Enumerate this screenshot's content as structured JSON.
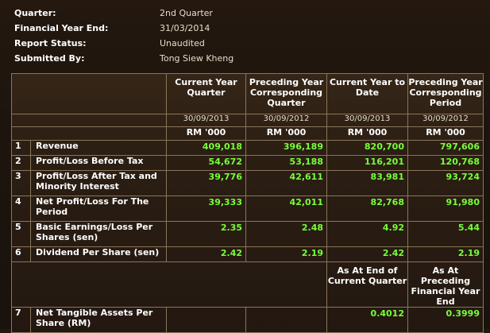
{
  "info": {
    "rows": [
      {
        "label": "Quarter:",
        "value": "2nd Quarter"
      },
      {
        "label": "Financial Year End:",
        "value": "31/03/2014"
      },
      {
        "label": "Report Status:",
        "value": "Unaudited"
      },
      {
        "label": "Submitted By:",
        "value": "Tong Siew Kheng"
      }
    ]
  },
  "table": {
    "headers": [
      "Current Year Quarter",
      "Preceding Year Corresponding Quarter",
      "Current Year to Date",
      "Preceding Year Corresponding Period"
    ],
    "dates": [
      "30/09/2013",
      "30/09/2012",
      "30/09/2013",
      "30/09/2012"
    ],
    "units": [
      "RM '000",
      "RM '000",
      "RM '000",
      "RM '000"
    ],
    "rows": [
      {
        "num": "1",
        "label": "Revenue",
        "values": [
          "409,018",
          "396,189",
          "820,700",
          "797,606"
        ]
      },
      {
        "num": "2",
        "label": "Profit/Loss Before Tax",
        "values": [
          "54,672",
          "53,188",
          "116,201",
          "120,768"
        ]
      },
      {
        "num": "3",
        "label": "Profit/Loss After Tax and Minority Interest",
        "values": [
          "39,776",
          "42,611",
          "83,981",
          "93,724"
        ]
      },
      {
        "num": "4",
        "label": "Net Profit/Loss For The Period",
        "values": [
          "39,333",
          "42,011",
          "82,768",
          "91,980"
        ]
      },
      {
        "num": "5",
        "label": "Basic Earnings/Loss Per Shares (sen)",
        "values": [
          "2.35",
          "2.48",
          "4.92",
          "5.44"
        ]
      },
      {
        "num": "6",
        "label": "Dividend Per Share (sen)",
        "values": [
          "2.42",
          "2.19",
          "2.42",
          "2.19"
        ]
      }
    ],
    "nta_headers": [
      "As At End of Current Quarter",
      "As At Preceding Financial Year End"
    ],
    "nta_row": {
      "num": "7",
      "label": "Net Tangible Assets Per Share (RM)",
      "values": [
        "0.4012",
        "0.3999"
      ]
    }
  },
  "colors": {
    "background": "#1a130d",
    "value_green": "#78ff3a",
    "border": "#8a7559"
  }
}
